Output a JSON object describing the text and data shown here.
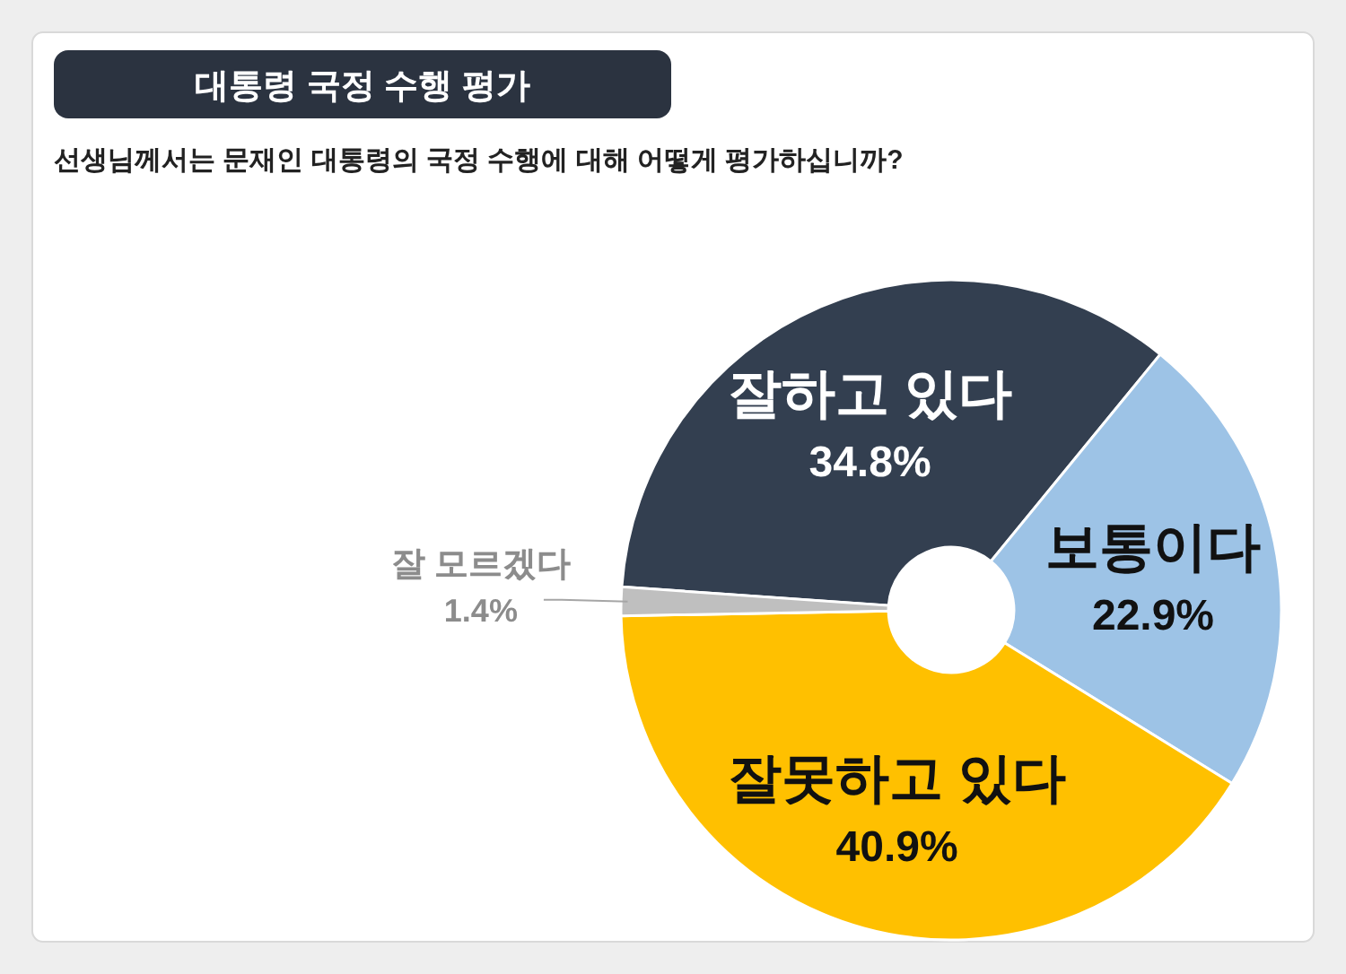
{
  "chart_data": {
    "type": "donut",
    "title": "대통령 국정 수행 평가",
    "subtitle": "선생님께서는 문재인 대통령의 국정 수행에 대해 어떻게 평가하십니까?",
    "categories": [
      "잘하고 있다",
      "보통이다",
      "잘못하고 있다",
      "잘 모르겠다"
    ],
    "values": [
      34.8,
      22.9,
      40.9,
      1.4
    ],
    "colors": [
      "#333f50",
      "#9dc3e6",
      "#ffc000",
      "#bfbfbf"
    ],
    "value_labels": [
      "34.8%",
      "22.9%",
      "40.9%",
      "1.4%"
    ]
  }
}
